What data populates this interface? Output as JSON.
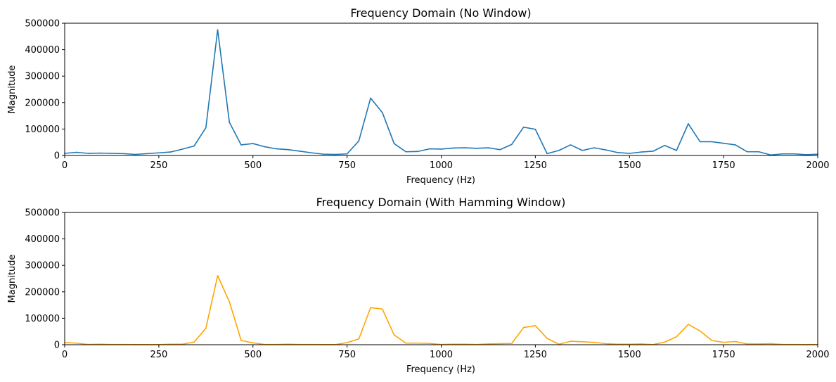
{
  "colors": {
    "series_1": "#1f77b4",
    "series_2": "#ffa500",
    "axis": "#000000",
    "background": "#ffffff"
  },
  "chart_data": [
    {
      "type": "line",
      "title": "Frequency Domain (No Window)",
      "xlabel": "Frequency (Hz)",
      "ylabel": "Magnitude",
      "xlim": [
        0,
        2000
      ],
      "ylim": [
        0,
        500000
      ],
      "x_ticks": [
        "0",
        "250",
        "500",
        "750",
        "1000",
        "1250",
        "1500",
        "1750",
        "2000"
      ],
      "y_ticks": [
        "0",
        "100000",
        "200000",
        "300000",
        "400000",
        "500000"
      ],
      "grid": false,
      "series": [
        {
          "color": "#1f77b4",
          "x": [
            0,
            31.25,
            62.5,
            93.75,
            125,
            156.25,
            187.5,
            218.75,
            250,
            281.25,
            312.5,
            343.75,
            375,
            406.25,
            437.5,
            468.75,
            500,
            531.25,
            562.5,
            593.75,
            625,
            656.25,
            687.5,
            718.75,
            750,
            781.25,
            812.5,
            843.75,
            875,
            906.25,
            937.5,
            968.75,
            1000,
            1031.25,
            1062.5,
            1093.75,
            1125,
            1156.25,
            1187.5,
            1218.75,
            1250,
            1281.25,
            1312.5,
            1343.75,
            1375,
            1406.25,
            1437.5,
            1468.75,
            1500,
            1531.25,
            1562.5,
            1593.75,
            1625,
            1656.25,
            1687.5,
            1718.75,
            1750,
            1781.25,
            1812.5,
            1843.75,
            1875,
            1906.25,
            1937.5,
            1968.75,
            2000
          ],
          "values": [
            8000,
            12000,
            8000,
            9000,
            8000,
            7000,
            4000,
            7000,
            10000,
            13000,
            24000,
            36000,
            105000,
            475000,
            125000,
            40000,
            45000,
            33000,
            25000,
            22000,
            16000,
            10000,
            5000,
            4000,
            6000,
            55000,
            217000,
            162000,
            45000,
            14000,
            15000,
            25000,
            24000,
            28000,
            29000,
            27000,
            29000,
            22000,
            42000,
            107000,
            99000,
            7000,
            19000,
            40000,
            19000,
            29000,
            21000,
            11000,
            8000,
            13000,
            16000,
            38000,
            19000,
            120000,
            52000,
            52000,
            46000,
            40000,
            14000,
            14000,
            2000,
            6000,
            6000,
            3000,
            5000
          ]
        }
      ]
    },
    {
      "type": "line",
      "title": "Frequency Domain (With Hamming Window)",
      "xlabel": "Frequency (Hz)",
      "ylabel": "Magnitude",
      "xlim": [
        0,
        2000
      ],
      "ylim": [
        0,
        500000
      ],
      "x_ticks": [
        "0",
        "250",
        "500",
        "750",
        "1000",
        "1250",
        "1500",
        "1750",
        "2000"
      ],
      "y_ticks": [
        "0",
        "100000",
        "200000",
        "300000",
        "400000",
        "500000"
      ],
      "grid": false,
      "series": [
        {
          "color": "#ffa500",
          "x": [
            0,
            31.25,
            62.5,
            93.75,
            125,
            156.25,
            187.5,
            218.75,
            250,
            281.25,
            312.5,
            343.75,
            375,
            406.25,
            437.5,
            468.75,
            500,
            531.25,
            562.5,
            593.75,
            625,
            656.25,
            687.5,
            718.75,
            750,
            781.25,
            812.5,
            843.75,
            875,
            906.25,
            937.5,
            968.75,
            1000,
            1031.25,
            1062.5,
            1093.75,
            1125,
            1156.25,
            1187.5,
            1218.75,
            1250,
            1281.25,
            1312.5,
            1343.75,
            1375,
            1406.25,
            1437.5,
            1468.75,
            1500,
            1531.25,
            1562.5,
            1593.75,
            1625,
            1656.25,
            1687.5,
            1718.75,
            1750,
            1781.25,
            1812.5,
            1843.75,
            1875,
            1906.25,
            1937.5,
            1968.75,
            2000
          ],
          "values": [
            8000,
            6000,
            1000,
            2000,
            1000,
            1000,
            500,
            500,
            500,
            2000,
            2000,
            10000,
            62000,
            261000,
            162000,
            16000,
            7000,
            1000,
            1000,
            2000,
            1000,
            1000,
            500,
            500,
            8000,
            22000,
            140000,
            135000,
            37000,
            6000,
            6000,
            5000,
            1000,
            2000,
            2000,
            1000,
            3000,
            4000,
            5000,
            65000,
            72000,
            24000,
            2000,
            13000,
            11000,
            9000,
            4000,
            2000,
            2000,
            3000,
            500,
            10000,
            30000,
            77000,
            52000,
            16000,
            9000,
            12000,
            3000,
            3000,
            4000,
            1000,
            1000,
            500,
            1000
          ]
        }
      ]
    }
  ]
}
